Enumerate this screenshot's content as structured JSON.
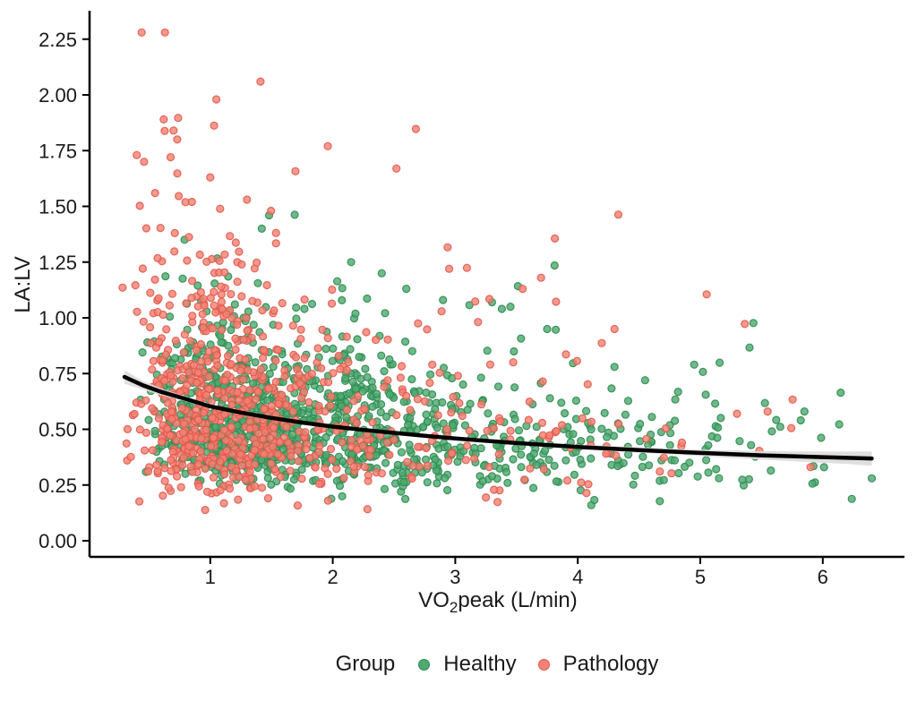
{
  "figure": {
    "background": "#ffffff",
    "axis_color": "#000000",
    "text_color": "#1a1a1a"
  },
  "legend": {
    "title": "Group",
    "items": [
      {
        "label": "Healthy",
        "color": "#4fa970",
        "stroke": "#2f8b52"
      },
      {
        "label": "Pathology",
        "color": "#f38174",
        "stroke": "#e05a4c"
      }
    ]
  },
  "chart_data": {
    "type": "scatter",
    "title": "",
    "xlabel": {
      "pre": "VO",
      "sub": "2",
      "post": "peak (L/min)"
    },
    "ylabel": "LA:LV",
    "xlim": [
      0,
      6.67
    ],
    "ylim": [
      -0.07,
      2.39
    ],
    "xticks": [
      1,
      2,
      3,
      4,
      5,
      6
    ],
    "yticks": [
      "0.00",
      "0.25",
      "0.50",
      "0.75",
      "1.00",
      "1.25",
      "1.50",
      "1.75",
      "2.00",
      "2.25"
    ],
    "grid": false,
    "legend_position": "bottom",
    "point_radius": 4,
    "point_fill_opacity": 0.82,
    "seed": 11,
    "series": [
      {
        "name": "Healthy",
        "fill": "#4fa970",
        "stroke": "#2f8b52",
        "n": 1150,
        "x_dist": {
          "core_mu": 0.38,
          "core_sigma": 0.42,
          "core_frac": 0.75,
          "tail_min": 2.0,
          "tail_max": 6.45,
          "min": 0.28,
          "max": 6.45
        },
        "y_model": {
          "base_a": 0.56,
          "base_b": 0.085,
          "noise_sigma": 0.33,
          "min": 0.06,
          "max": 1.48
        },
        "extra_points": [
          [
            0.79,
            1.35
          ],
          [
            1.48,
            1.46
          ],
          [
            1.42,
            1.4
          ],
          [
            2.15,
            1.25
          ],
          [
            2.4,
            1.2
          ],
          [
            2.6,
            1.13
          ],
          [
            2.9,
            1.08
          ],
          [
            3.3,
            1.07
          ],
          [
            3.38,
            1.04
          ],
          [
            3.45,
            1.05
          ],
          [
            3.75,
            0.95
          ],
          [
            4.3,
            0.78
          ],
          [
            4.55,
            0.72
          ],
          [
            4.95,
            0.79
          ],
          [
            5.82,
            0.54
          ],
          [
            5.85,
            0.58
          ],
          [
            6.4,
            0.28
          ]
        ]
      },
      {
        "name": "Pathology",
        "fill": "#f38174",
        "stroke": "#e05a4c",
        "n": 780,
        "x_dist": {
          "core_mu": 0.1,
          "core_sigma": 0.45,
          "core_frac": 0.85,
          "tail_min": 1.8,
          "tail_max": 5.9,
          "min": 0.28,
          "max": 5.9
        },
        "y_model": {
          "base_a": 0.6,
          "base_b": 0.075,
          "noise_sigma": 0.45,
          "min": 0.08,
          "max": 2.3
        },
        "extra_points": [
          [
            0.44,
            2.28
          ],
          [
            0.63,
            2.28
          ],
          [
            1.41,
            2.06
          ],
          [
            1.05,
            1.98
          ],
          [
            0.62,
            1.89
          ],
          [
            0.7,
            1.84
          ],
          [
            0.73,
            1.8
          ],
          [
            1.96,
            1.77
          ],
          [
            2.52,
            1.67
          ],
          [
            1.0,
            1.63
          ],
          [
            0.55,
            1.56
          ],
          [
            1.3,
            1.53
          ],
          [
            0.85,
            1.52
          ],
          [
            0.4,
            1.73
          ],
          [
            0.46,
            1.7
          ],
          [
            2.95,
            1.22
          ],
          [
            3.55,
            1.13
          ],
          [
            3.7,
            1.18
          ],
          [
            4.3,
            0.95
          ],
          [
            4.85,
            0.44
          ],
          [
            5.3,
            0.57
          ],
          [
            5.55,
            0.58
          ],
          [
            5.9,
            0.33
          ]
        ]
      }
    ],
    "trend": {
      "color": "#000000",
      "width": 4.5,
      "ci_color": "#dcdcdc",
      "points": [
        [
          0.3,
          0.735,
          0.03
        ],
        [
          0.45,
          0.697,
          0.02
        ],
        [
          0.6,
          0.668,
          0.015
        ],
        [
          0.8,
          0.636,
          0.011
        ],
        [
          1.0,
          0.603,
          0.009
        ],
        [
          1.25,
          0.575,
          0.008
        ],
        [
          1.5,
          0.551,
          0.008
        ],
        [
          1.75,
          0.53,
          0.008
        ],
        [
          2.0,
          0.512,
          0.008
        ],
        [
          2.25,
          0.497,
          0.008
        ],
        [
          2.5,
          0.484,
          0.008
        ],
        [
          2.75,
          0.471,
          0.008
        ],
        [
          3.0,
          0.459,
          0.008
        ],
        [
          3.25,
          0.448,
          0.009
        ],
        [
          3.5,
          0.438,
          0.009
        ],
        [
          4.0,
          0.421,
          0.01
        ],
        [
          4.5,
          0.407,
          0.012
        ],
        [
          5.0,
          0.394,
          0.015
        ],
        [
          5.5,
          0.383,
          0.019
        ],
        [
          6.0,
          0.375,
          0.025
        ],
        [
          6.2,
          0.372,
          0.028
        ],
        [
          6.4,
          0.369,
          0.032
        ]
      ]
    }
  }
}
